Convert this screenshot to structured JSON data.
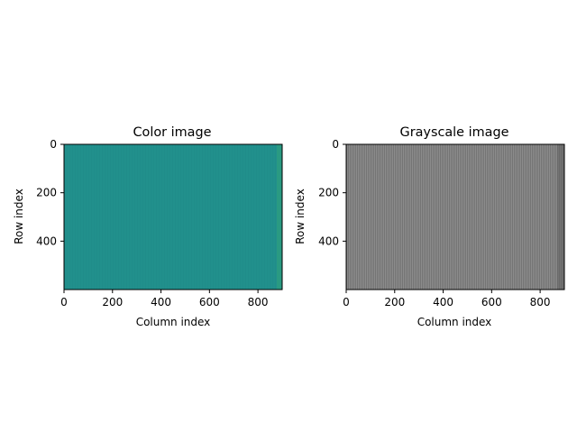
{
  "chart_data": [
    {
      "type": "heatmap",
      "title": "Color image",
      "xlabel": "Column index",
      "ylabel": "Row index",
      "xlim": [
        0,
        900
      ],
      "ylim": [
        600,
        0
      ],
      "xticks": [
        "0",
        "200",
        "400",
        "600",
        "800"
      ],
      "yticks": [
        "0",
        "200",
        "400"
      ],
      "grid": false,
      "colormap": "viridis",
      "dominant_color": "#21908c",
      "edge_band_color": "#2a9a82",
      "pattern": "vertical stripes, nearly uniform teal"
    },
    {
      "type": "heatmap",
      "title": "Grayscale image",
      "xlabel": "Column index",
      "ylabel": "Row index",
      "xlim": [
        0,
        900
      ],
      "ylim": [
        600,
        0
      ],
      "xticks": [
        "0",
        "200",
        "400",
        "600",
        "800"
      ],
      "yticks": [
        "0",
        "200",
        "400"
      ],
      "grid": false,
      "colormap": "gray",
      "dominant_color": "#808080",
      "stripe_dark_color": "#6a6a6a",
      "stripe_light_color": "#969696",
      "pattern": "fine vertical gray stripes"
    }
  ]
}
